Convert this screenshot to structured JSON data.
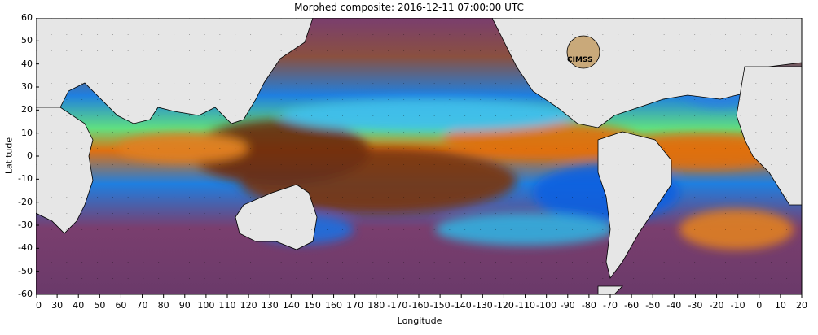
{
  "title": "Morphed composite: 2016-12-11 07:00:00 UTC",
  "xlabel": "Longitude",
  "ylabel": "Latitude",
  "logo_text": "CIMSS",
  "x_ticks": [
    "20",
    "30",
    "40",
    "50",
    "60",
    "70",
    "80",
    "90",
    "100",
    "110",
    "120",
    "130",
    "140",
    "150",
    "160",
    "170",
    "180",
    "-170",
    "-160",
    "-150",
    "-140",
    "-130",
    "-120",
    "-110",
    "-100",
    "-90",
    "-80",
    "-70",
    "-60",
    "-50",
    "-40",
    "-30",
    "-20",
    "-10",
    "0",
    "10",
    "20"
  ],
  "y_ticks": [
    "60",
    "50",
    "40",
    "30",
    "20",
    "10",
    "0",
    "-10",
    "-20",
    "-30",
    "-40",
    "-50",
    "-60"
  ],
  "colors": {
    "dry_purple": "#7a3e6e",
    "dry_brown": "#8a5040",
    "mid_blue": "#1f7fe0",
    "cyan": "#30d0f0",
    "green": "#60e080",
    "yellow": "#f0e040",
    "orange": "#e07010",
    "moist_brown": "#6a2a10",
    "land": "#e6e6e6"
  }
}
